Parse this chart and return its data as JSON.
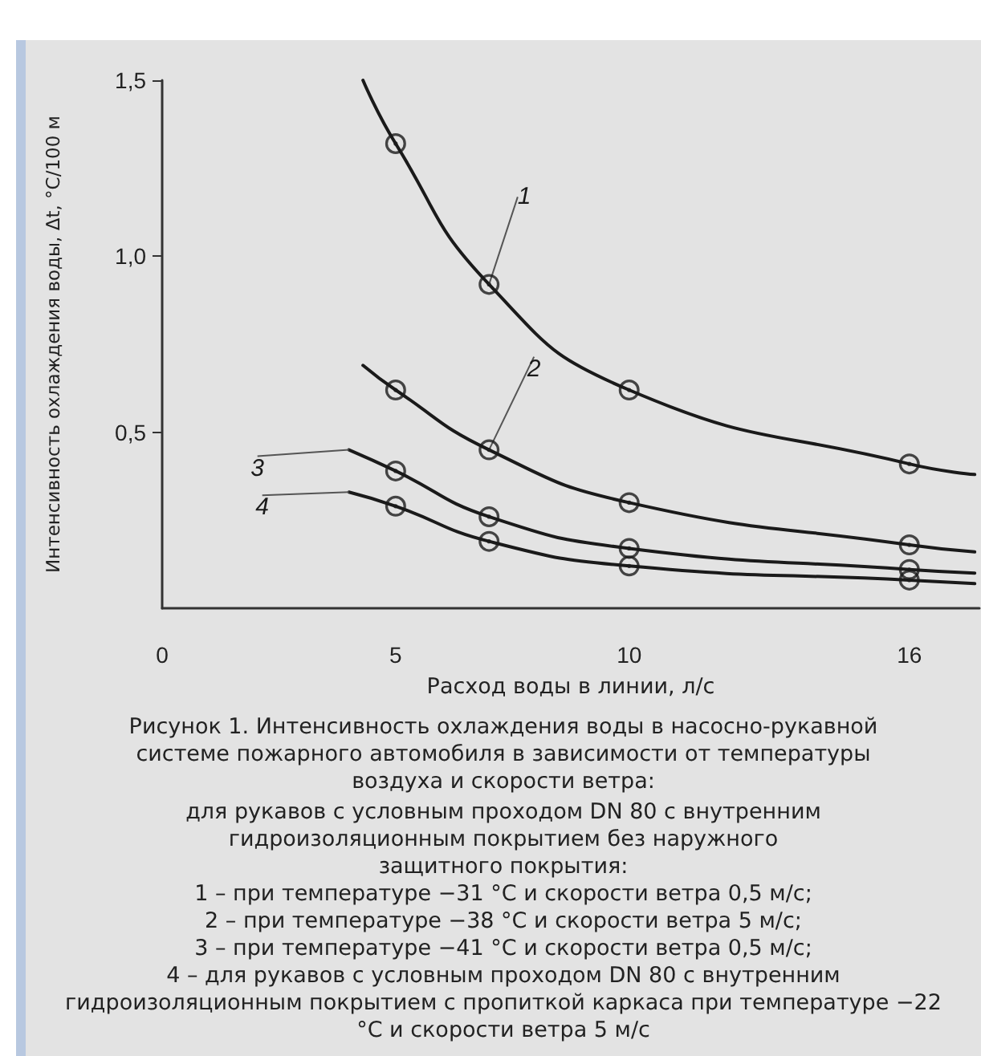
{
  "chart_data": {
    "type": "line",
    "title": "Рисунок 1. Интенсивность охлаждения воды в насосно-рукавной системе пожарного автомобиля в зависимости от температуры воздуха и скорости ветра:",
    "xlabel": "Расход воды в линии, л/с",
    "ylabel": "Интенсивность охлаждения воды, Δt, °C/100 м",
    "xlim": [
      0,
      17.5
    ],
    "xticks": [
      0,
      5,
      10,
      16
    ],
    "ylim": [
      0,
      1.5
    ],
    "yticks": [
      {
        "value": 0.5,
        "label": "0,5"
      },
      {
        "value": 1.0,
        "label": "1,0"
      },
      {
        "value": 1.5,
        "label": "1,5"
      }
    ],
    "grid": false,
    "legend": false,
    "marker": "none",
    "line_style": "solid",
    "series": [
      {
        "name": "1",
        "color": "#1a1a1a",
        "x": [
          4.3,
          5,
          7,
          10,
          16,
          17.4
        ],
        "values": [
          1.5,
          1.32,
          0.92,
          0.62,
          0.41,
          0.38
        ]
      },
      {
        "name": "2",
        "color": "#1a1a1a",
        "x": [
          4.3,
          5,
          7,
          10,
          16,
          17.4
        ],
        "values": [
          0.69,
          0.62,
          0.45,
          0.3,
          0.18,
          0.16
        ]
      },
      {
        "name": "3",
        "color": "#1a1a1a",
        "x": [
          4,
          5,
          7,
          10,
          16,
          17.4
        ],
        "values": [
          0.45,
          0.39,
          0.26,
          0.17,
          0.11,
          0.1
        ]
      },
      {
        "name": "4",
        "color": "#1a1a1a",
        "x": [
          4,
          5,
          7,
          10,
          16,
          17.4
        ],
        "values": [
          0.33,
          0.29,
          0.19,
          0.12,
          0.08,
          0.07
        ]
      },
      {
        "type": "scatter",
        "marker": "circle",
        "color": "#1a1a1a",
        "x": [
          5,
          7,
          10,
          16
        ],
        "values": [
          1.32,
          0.92,
          0.62,
          0.41
        ]
      },
      {
        "type": "scatter",
        "marker": "circle",
        "color": "#1a1a1a",
        "x": [
          5,
          7,
          10,
          16
        ],
        "values": [
          0.62,
          0.45,
          0.3,
          0.18
        ]
      },
      {
        "type": "scatter",
        "marker": "circle",
        "color": "#1a1a1a",
        "x": [
          5,
          7,
          10,
          16
        ],
        "values": [
          0.39,
          0.26,
          0.17,
          0.11
        ]
      },
      {
        "type": "scatter",
        "marker": "circle",
        "color": "#1a1a1a",
        "x": [
          5,
          7,
          10,
          16
        ],
        "values": [
          0.29,
          0.19,
          0.12,
          0.08
        ]
      }
    ],
    "annotations": [
      "для рукавов с условным проходом DN 80 с внутренним гидроизоляционным покрытием без наружного защитного покрытия:",
      "1 – при температуре −31 °С и скорости ветра 0,5 м/с;",
      "2 – при температуре −38 °С и скорости ветра 5 м/с;",
      "3 – при температуре −41 °С и скорости ветра 0,5 м/с;",
      "4 – для рукавов с условным проходом DN 80 с внутренним гидроизоляционным покрытием с пропиткой каркаса при температуре −22 °С и скорости ветра 5 м/с"
    ]
  }
}
